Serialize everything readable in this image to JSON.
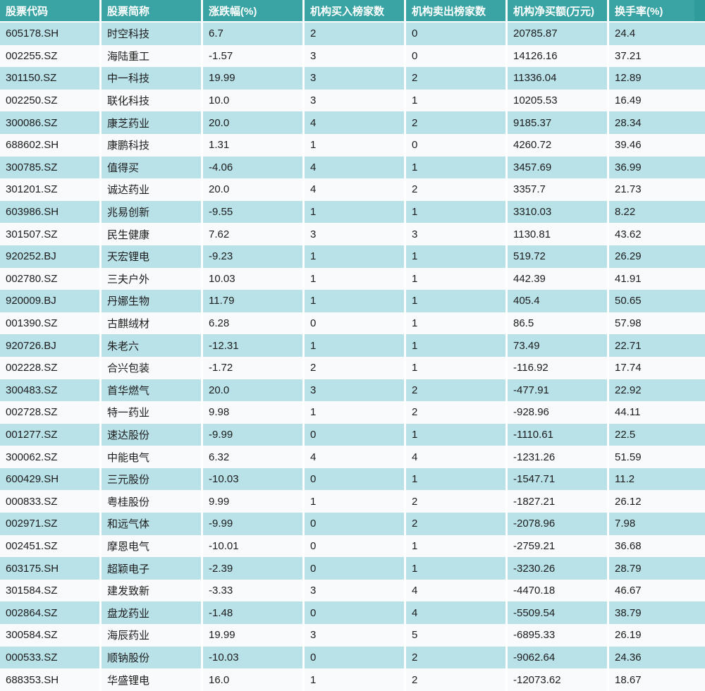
{
  "colors": {
    "header_bg": "#3aa4a4",
    "header_tail": "#2f9b9b",
    "header_text": "#ffffff",
    "row_alt": "#b9e1e8",
    "row_base": "#f8fafb",
    "body_text": "#1c1c1c",
    "separator": "#ffffff"
  },
  "column_keys": [
    "code",
    "name",
    "pct-change",
    "inst-buy-count",
    "inst-sell-count",
    "inst-net-buy",
    "turnover-rate"
  ],
  "chart_data": {
    "type": "table",
    "title": "",
    "columns": [
      "股票代码",
      "股票简称",
      "涨跌幅(%)",
      "机构买入榜家数",
      "机构卖出榜家数",
      "机构净买额(万元)",
      "换手率(%)"
    ],
    "rows": [
      [
        "605178.SH",
        "时空科技",
        "6.7",
        "2",
        "0",
        "20785.87",
        "24.4"
      ],
      [
        "002255.SZ",
        "海陆重工",
        "-1.57",
        "3",
        "0",
        "14126.16",
        "37.21"
      ],
      [
        "301150.SZ",
        "中一科技",
        "19.99",
        "3",
        "2",
        "11336.04",
        "12.89"
      ],
      [
        "002250.SZ",
        "联化科技",
        "10.0",
        "3",
        "1",
        "10205.53",
        "16.49"
      ],
      [
        "300086.SZ",
        "康芝药业",
        "20.0",
        "4",
        "2",
        "9185.37",
        "28.34"
      ],
      [
        "688602.SH",
        "康鹏科技",
        "1.31",
        "1",
        "0",
        "4260.72",
        "39.46"
      ],
      [
        "300785.SZ",
        "值得买",
        "-4.06",
        "4",
        "1",
        "3457.69",
        "36.99"
      ],
      [
        "301201.SZ",
        "诚达药业",
        "20.0",
        "4",
        "2",
        "3357.7",
        "21.73"
      ],
      [
        "603986.SH",
        "兆易创新",
        "-9.55",
        "1",
        "1",
        "3310.03",
        "8.22"
      ],
      [
        "301507.SZ",
        "民生健康",
        "7.62",
        "3",
        "3",
        "1130.81",
        "43.62"
      ],
      [
        "920252.BJ",
        "天宏锂电",
        "-9.23",
        "1",
        "1",
        "519.72",
        "26.29"
      ],
      [
        "002780.SZ",
        "三夫户外",
        "10.03",
        "1",
        "1",
        "442.39",
        "41.91"
      ],
      [
        "920009.BJ",
        "丹娜生物",
        "11.79",
        "1",
        "1",
        "405.4",
        "50.65"
      ],
      [
        "001390.SZ",
        "古麒绒材",
        "6.28",
        "0",
        "1",
        "86.5",
        "57.98"
      ],
      [
        "920726.BJ",
        "朱老六",
        "-12.31",
        "1",
        "1",
        "73.49",
        "22.71"
      ],
      [
        "002228.SZ",
        "合兴包装",
        "-1.72",
        "2",
        "1",
        "-116.92",
        "17.74"
      ],
      [
        "300483.SZ",
        "首华燃气",
        "20.0",
        "3",
        "2",
        "-477.91",
        "22.92"
      ],
      [
        "002728.SZ",
        "特一药业",
        "9.98",
        "1",
        "2",
        "-928.96",
        "44.11"
      ],
      [
        "001277.SZ",
        "速达股份",
        "-9.99",
        "0",
        "1",
        "-1110.61",
        "22.5"
      ],
      [
        "300062.SZ",
        "中能电气",
        "6.32",
        "4",
        "4",
        "-1231.26",
        "51.59"
      ],
      [
        "600429.SH",
        "三元股份",
        "-10.03",
        "0",
        "1",
        "-1547.71",
        "11.2"
      ],
      [
        "000833.SZ",
        "粤桂股份",
        "9.99",
        "1",
        "2",
        "-1827.21",
        "26.12"
      ],
      [
        "002971.SZ",
        "和远气体",
        "-9.99",
        "0",
        "2",
        "-2078.96",
        "7.98"
      ],
      [
        "002451.SZ",
        "摩恩电气",
        "-10.01",
        "0",
        "1",
        "-2759.21",
        "36.68"
      ],
      [
        "603175.SH",
        "超颖电子",
        "-2.39",
        "0",
        "1",
        "-3230.26",
        "28.79"
      ],
      [
        "301584.SZ",
        "建发致新",
        "-3.33",
        "3",
        "4",
        "-4470.18",
        "46.67"
      ],
      [
        "002864.SZ",
        "盘龙药业",
        "-1.48",
        "0",
        "4",
        "-5509.54",
        "38.79"
      ],
      [
        "300584.SZ",
        "海辰药业",
        "19.99",
        "3",
        "5",
        "-6895.33",
        "26.19"
      ],
      [
        "000533.SZ",
        "顺钠股份",
        "-10.03",
        "0",
        "2",
        "-9062.64",
        "24.36"
      ],
      [
        "688353.SH",
        "华盛锂电",
        "16.0",
        "1",
        "2",
        "-12073.62",
        "18.67"
      ]
    ]
  }
}
